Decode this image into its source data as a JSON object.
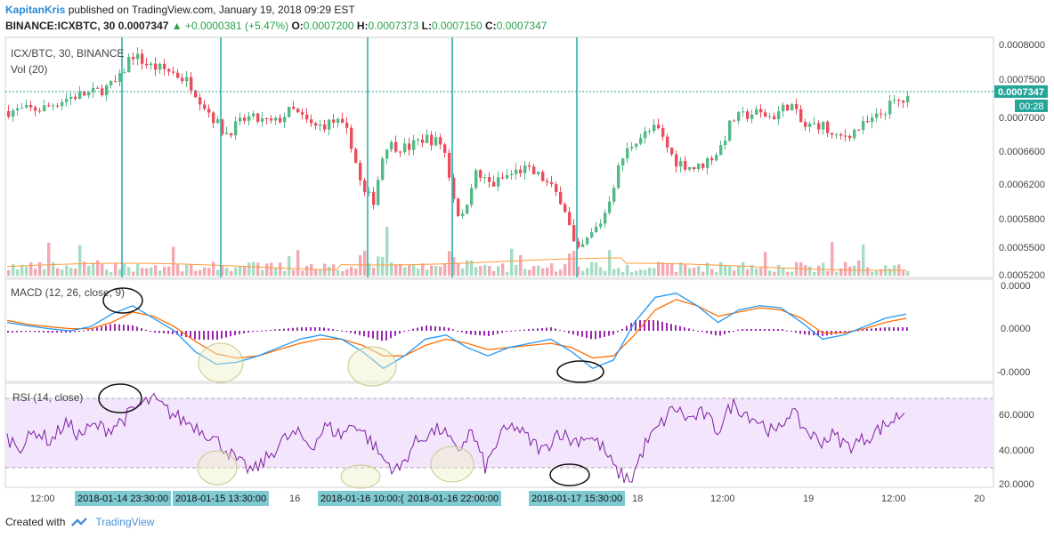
{
  "header": {
    "author": "KapitanKris",
    "published": "published on TradingView.com, January 19, 2018 09:29 EST",
    "symbol": "BINANCE:ICXBTC, 30",
    "last": "0.0007347",
    "change": "▲ +0.0000381 (+5.47%)",
    "o_label": "O:",
    "o": "0.0007200",
    "h_label": "H:",
    "h": "0.0007373",
    "l_label": "L:",
    "l": "0.0007150",
    "c_label": "C:",
    "c": "0.0007347"
  },
  "colors": {
    "up": "#53b987",
    "down": "#eb4d5c",
    "upvol": "#a6dcc3",
    "downvol": "#f4a9b2",
    "macd": "#2196f3",
    "signal": "#ff6d00",
    "hist": "#9c27b0",
    "rsi": "#7b1fa2",
    "rsiband": "#f3e5fb",
    "marker": "#3ab5b0",
    "pricetag": "#26a69a"
  },
  "footer": {
    "created": "Created with",
    "brand": "TradingView"
  },
  "chart_data": [
    {
      "type": "candlestick",
      "title": "ICX/BTC, 30, BINANCE",
      "volume_label": "Vol (20)",
      "y_ticks": [
        "0.0008000",
        "0.0007500",
        "0.0007000",
        "0.0006600",
        "0.0006200",
        "0.0005800",
        "0.0005500",
        "0.0005200"
      ],
      "price_tag": "0.0007347",
      "time_tag": "00:28",
      "close_path": [
        {
          "x": 0,
          "y": 0.00072
        },
        {
          "x": 40,
          "y": 0.000723
        },
        {
          "x": 70,
          "y": 0.000737
        },
        {
          "x": 100,
          "y": 0.000743
        },
        {
          "x": 125,
          "y": 0.000755
        },
        {
          "x": 140,
          "y": 0.00079
        },
        {
          "x": 160,
          "y": 0.000775
        },
        {
          "x": 185,
          "y": 0.000768
        },
        {
          "x": 205,
          "y": 0.000755
        },
        {
          "x": 220,
          "y": 0.00073
        },
        {
          "x": 245,
          "y": 0.000692
        },
        {
          "x": 270,
          "y": 0.000712
        },
        {
          "x": 300,
          "y": 0.000705
        },
        {
          "x": 320,
          "y": 0.000722
        },
        {
          "x": 345,
          "y": 0.0007
        },
        {
          "x": 370,
          "y": 0.000708
        },
        {
          "x": 385,
          "y": 0.00069
        },
        {
          "x": 400,
          "y": 0.00062
        },
        {
          "x": 412,
          "y": 0.000612
        },
        {
          "x": 425,
          "y": 0.00068
        },
        {
          "x": 450,
          "y": 0.000675
        },
        {
          "x": 470,
          "y": 0.000688
        },
        {
          "x": 490,
          "y": 0.00068
        },
        {
          "x": 505,
          "y": 0.0006
        },
        {
          "x": 512,
          "y": 0.00059
        },
        {
          "x": 525,
          "y": 0.000645
        },
        {
          "x": 545,
          "y": 0.00063
        },
        {
          "x": 560,
          "y": 0.00064
        },
        {
          "x": 580,
          "y": 0.00065
        },
        {
          "x": 600,
          "y": 0.00064
        },
        {
          "x": 625,
          "y": 0.00061
        },
        {
          "x": 640,
          "y": 0.000545
        },
        {
          "x": 650,
          "y": 0.00056
        },
        {
          "x": 670,
          "y": 0.00059
        },
        {
          "x": 690,
          "y": 0.00066
        },
        {
          "x": 705,
          "y": 0.000685
        },
        {
          "x": 730,
          "y": 0.0007
        },
        {
          "x": 750,
          "y": 0.00066
        },
        {
          "x": 775,
          "y": 0.00065
        },
        {
          "x": 800,
          "y": 0.000672
        },
        {
          "x": 815,
          "y": 0.00071
        },
        {
          "x": 840,
          "y": 0.000718
        },
        {
          "x": 860,
          "y": 0.000713
        },
        {
          "x": 880,
          "y": 0.00073
        },
        {
          "x": 895,
          "y": 0.0007
        },
        {
          "x": 915,
          "y": 0.000705
        },
        {
          "x": 930,
          "y": 0.000685
        },
        {
          "x": 950,
          "y": 0.000695
        },
        {
          "x": 975,
          "y": 0.00071
        },
        {
          "x": 995,
          "y": 0.00073
        },
        {
          "x": 1020,
          "y": 0.000735
        }
      ]
    },
    {
      "type": "line",
      "title": "MACD (12, 26, close, 9)",
      "y_ticks": [
        "0.0000",
        "0.0000",
        "-0.0000"
      ],
      "series": [
        {
          "name": "MACD",
          "values": [
            0.2,
            0.12,
            0.05,
            0.0,
            0.1,
            0.4,
            0.6,
            0.3,
            0.0,
            -0.5,
            -0.8,
            -0.75,
            -0.6,
            -0.4,
            -0.2,
            -0.1,
            -0.2,
            -0.5,
            -0.9,
            -0.6,
            -0.2,
            -0.1,
            -0.4,
            -0.6,
            -0.4,
            -0.3,
            -0.2,
            -0.5,
            -0.9,
            -0.7,
            0.2,
            0.8,
            0.9,
            0.6,
            0.2,
            0.5,
            0.6,
            0.55,
            0.2,
            -0.2,
            -0.1,
            0.1,
            0.3,
            0.4
          ]
        },
        {
          "name": "Signal",
          "values": [
            0.25,
            0.15,
            0.1,
            0.05,
            0.05,
            0.2,
            0.45,
            0.35,
            0.1,
            -0.25,
            -0.55,
            -0.65,
            -0.6,
            -0.45,
            -0.3,
            -0.2,
            -0.2,
            -0.35,
            -0.6,
            -0.6,
            -0.35,
            -0.2,
            -0.3,
            -0.45,
            -0.4,
            -0.35,
            -0.3,
            -0.4,
            -0.65,
            -0.6,
            -0.1,
            0.5,
            0.75,
            0.6,
            0.35,
            0.45,
            0.55,
            0.5,
            0.3,
            -0.05,
            -0.05,
            0.05,
            0.2,
            0.3
          ]
        }
      ]
    },
    {
      "type": "line",
      "title": "RSI (14, close)",
      "y_ticks": [
        "60.0000",
        "40.0000",
        "20.0000"
      ],
      "ylim": [
        20,
        80
      ],
      "bands": [
        30,
        70
      ],
      "series": [
        {
          "name": "RSI",
          "values": [
            50,
            45,
            55,
            48,
            60,
            52,
            58,
            56,
            62,
            70,
            75,
            68,
            62,
            58,
            52,
            44,
            34,
            29,
            38,
            49,
            53,
            45,
            58,
            52,
            60,
            49,
            36,
            29,
            46,
            53,
            56,
            41,
            55,
            31,
            52,
            58,
            49,
            42,
            55,
            48,
            52,
            45,
            29,
            23,
            46,
            58,
            70,
            62,
            66,
            55,
            72,
            66,
            60,
            52,
            68,
            56,
            48,
            52,
            45,
            49,
            55,
            61,
            68
          ]
        }
      ]
    }
  ],
  "x_axis": {
    "ticks": [
      "12:00",
      "16",
      "18",
      "12:00",
      "19",
      "12:00",
      "20"
    ],
    "highlight_tags": [
      "2018-01-14 23:30:00",
      "2018-01-15 13:30:00",
      "2018-01-16 10:00:(",
      "2018-01-16 22:00:00",
      "2018-01-17 15:30:00"
    ]
  }
}
